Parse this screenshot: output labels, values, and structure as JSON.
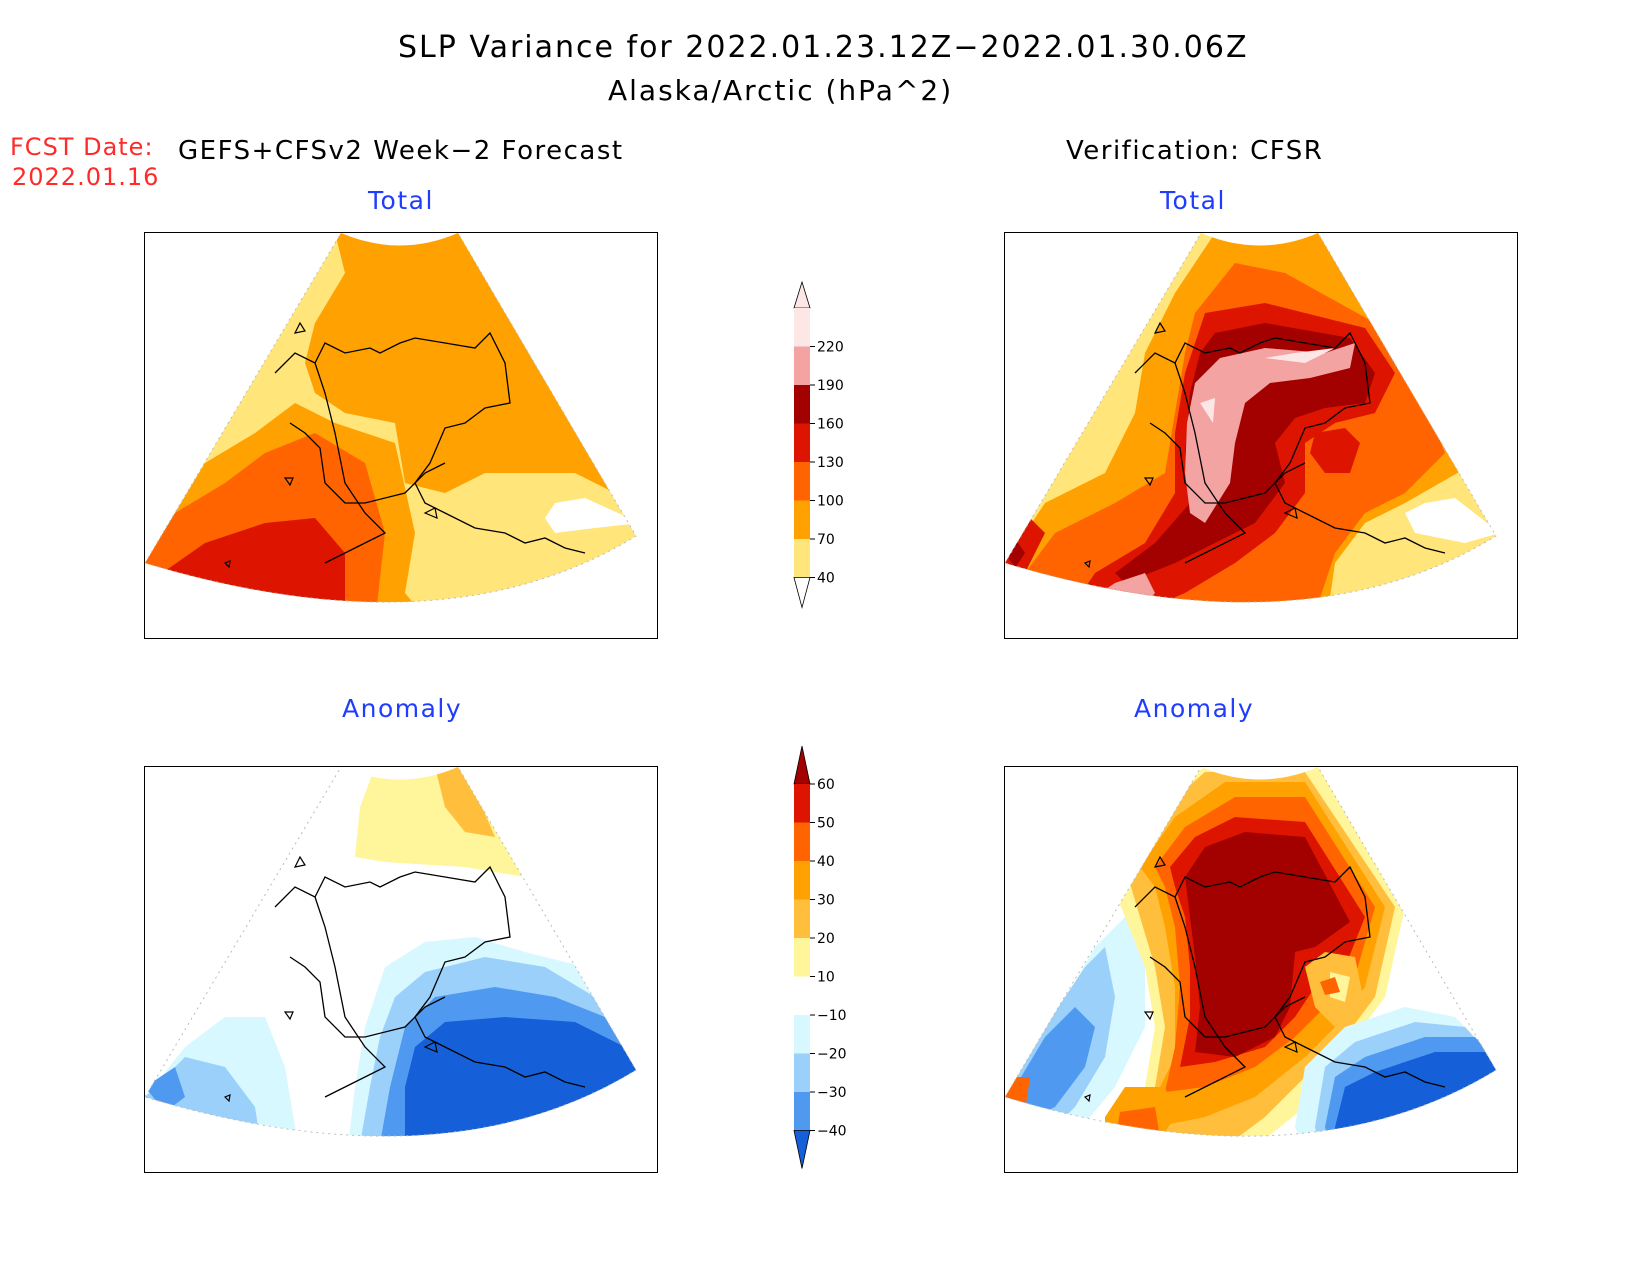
{
  "title": "SLP Variance for 2022.01.23.12Z−2022.01.30.06Z",
  "subtitle": "Alaska/Arctic (hPa^2)",
  "fcst": {
    "label": "FCST Date:",
    "date": "2022.01.16"
  },
  "columns": {
    "left": "GEFS+CFSv2 Week−2 Forecast",
    "right": "Verification: CFSR"
  },
  "panels": {
    "forecast_total": "Total",
    "verification_total": "Total",
    "forecast_anomaly": "Anomaly",
    "verification_anomaly": "Anomaly"
  },
  "colorbars": {
    "total": {
      "labels": [
        "220",
        "190",
        "160",
        "130",
        "100",
        "70",
        "40"
      ],
      "colors": [
        "#fde7e6",
        "#f4a3a3",
        "#a30000",
        "#dd1500",
        "#ff6400",
        "#ffa100",
        "#ffe57a"
      ]
    },
    "anomaly": {
      "labels": [
        "60",
        "50",
        "40",
        "30",
        "20",
        "10",
        "−10",
        "−20",
        "−30",
        "−40"
      ],
      "colors": [
        "#a30000",
        "#dd1500",
        "#ff6400",
        "#ffa100",
        "#ffbf3c",
        "#fff59a",
        "#ffffff",
        "#d8f8ff",
        "#9ad0fa",
        "#4f9af0",
        "#1560d8"
      ]
    }
  }
}
